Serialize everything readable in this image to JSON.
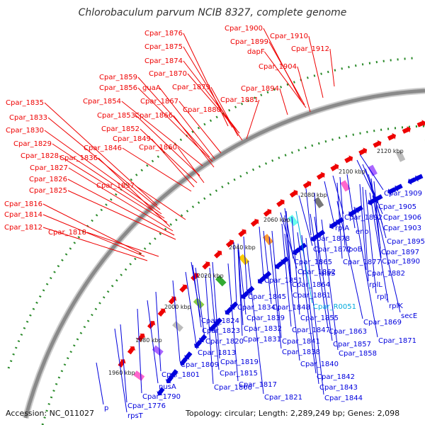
{
  "title": "Chlorobaculum parvum NCIB 8327, complete genome",
  "footer": {
    "accession": "Accession: NC_011027",
    "info": "Topology: circular; Length: 2,289,249 bp; Genes: 2,098"
  },
  "colors": {
    "forward": "#ee0000",
    "reverse": "#0000dd",
    "highlight": "#00aadd",
    "backbone": "#888888",
    "dots": "#228822"
  },
  "ticks": [
    "1960 kbp",
    "1980 kbp",
    "2000 kbp",
    "2020 kbp",
    "2040 kbp",
    "2060 kbp",
    "2080 kbp",
    "2100 kbp",
    "2120 kbp"
  ],
  "forward_labels": [
    "Cpar_1876",
    "Cpar_1875",
    "Cpar_1874",
    "Cpar_1870",
    "Cpar_1859",
    "Cpar_1856",
    "guaA",
    "Cpar_1867",
    "Cpar_1879",
    "Cpar_1880",
    "Cpar_1854",
    "Cpar_1853",
    "Cpar_1866",
    "Cpar_1852",
    "Cpar_1849",
    "Cpar_1846",
    "Cpar_1860",
    "Cpar_1835",
    "Cpar_1833",
    "Cpar_1830",
    "Cpar_1829",
    "Cpar_1828",
    "Cpar_1836",
    "Cpar_1827",
    "Cpar_1826",
    "Cpar_1825",
    "Cpar_1837",
    "Cpar_1816",
    "Cpar_1814",
    "Cpar_1812",
    "Cpar_1818",
    "Cpar_1881",
    "Cpar_1894",
    "Cpar_1900",
    "Cpar_1899",
    "dapF",
    "Cpar_1910",
    "Cpar_1912",
    "Cpar_1904"
  ],
  "reverse_labels": [
    "Cpar_1909",
    "Cpar_1905",
    "Cpar_1906",
    "Cpar_1892",
    "Cpar_1903",
    "rplA",
    "eno",
    "Cpar_1878",
    "Cpar_1895",
    "Cpar_1872",
    "rpoB",
    "Cpar_1897",
    "Cpar_1865",
    "Cpar_1877",
    "Cpar_1890",
    "Cpar_1862",
    "alaS",
    "Cpar_1882",
    "Cpar_1851",
    "Cpar_1864",
    "rplL",
    "Cpar_1845",
    "Cpar_1861",
    "rplJ",
    "Cpar_1834",
    "Cpar_1848",
    "Cpar_R0051",
    "rplK",
    "Cpar_1824",
    "Cpar_1839",
    "Cpar_1855",
    "secE",
    "Cpar_1869",
    "Cpar_1823",
    "Cpar_1832",
    "Cpar_1863",
    "Cpar_1820",
    "Cpar_1847",
    "Cpar_1831",
    "Cpar_1841",
    "Cpar_1871",
    "Cpar_1857",
    "Cpar_1813",
    "Cpar_1838",
    "Cpar_1858",
    "Cpar_1809",
    "Cpar_1819",
    "Cpar_1840",
    "Cpar_1801",
    "Cpar_1815",
    "Cpar_1842",
    "nusA",
    "Cpar_1806",
    "Cpar_1817",
    "Cpar_1843",
    "Cpar_1790",
    "Cpar_1821",
    "Cpar_1844",
    "Cpar_1776",
    "rpsT",
    "p"
  ]
}
